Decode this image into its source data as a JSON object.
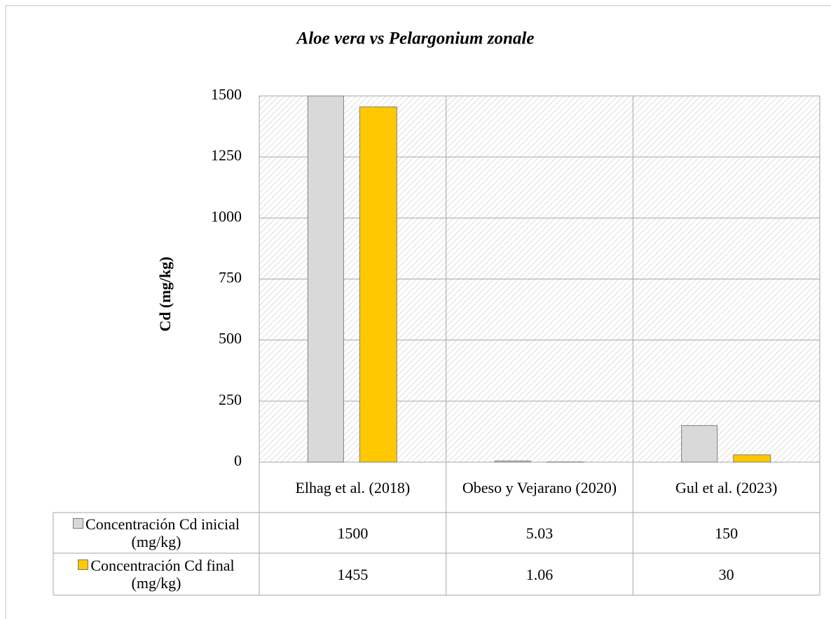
{
  "chart_data": {
    "type": "bar",
    "title": "Aloe vera vs Pelargonium zonale",
    "y_label": "Cd (mg/kg)",
    "categories": [
      "Elhag et al. (2018)",
      "Obeso y Vejarano (2020)",
      "Gul et al. (2023)"
    ],
    "series": [
      {
        "name": "Concentración Cd inicial (mg/kg)",
        "color": "#d9d9d9",
        "values": [
          1500,
          5.03,
          150
        ]
      },
      {
        "name": "Concentración Cd final (mg/kg)",
        "color": "#ffc800",
        "values": [
          1455,
          1.06,
          30
        ]
      }
    ],
    "ylim": [
      0,
      1500
    ],
    "yticks": [
      0,
      250,
      500,
      750,
      1000,
      1250,
      1500
    ],
    "grid": true
  }
}
